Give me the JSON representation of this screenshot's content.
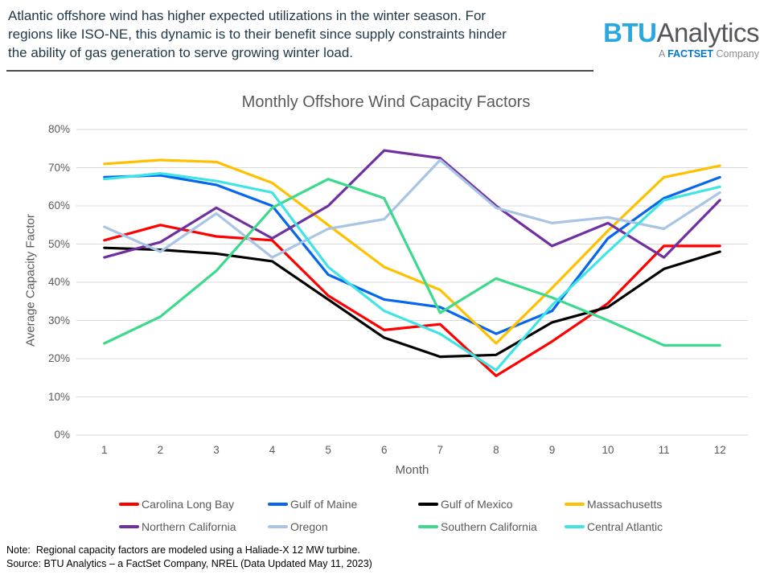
{
  "header": {
    "lines": [
      "Atlantic offshore wind has higher expected utilizations in the winter season. For",
      "regions like ISO-NE, this dynamic is to their benefit since supply constraints hinder",
      "the ability of gas generation to serve growing winter load."
    ],
    "logo": {
      "brand_bold": "BTU",
      "brand_rest": "Analytics",
      "tagline_prefix": "A ",
      "tagline_brand": "FACTSET",
      "tagline_suffix": " Company",
      "brand_color": "#29A8E0",
      "factset_color": "#0076C6"
    }
  },
  "chart_data": {
    "type": "line",
    "title": "Monthly Offshore Wind Capacity Factors",
    "xlabel": "Month",
    "ylabel": "Average Capacity Factor",
    "x": [
      1,
      2,
      3,
      4,
      5,
      6,
      7,
      8,
      9,
      10,
      11,
      12
    ],
    "ylim": [
      0,
      80
    ],
    "y_tick_step": 10,
    "y_tick_suffix": "%",
    "grid": "horizontal-only",
    "grid_color": "#D9D9D9",
    "legend_position": "bottom",
    "series": [
      {
        "name": "Carolina Long Bay",
        "color": "#FF0000",
        "values": [
          51,
          55,
          52,
          51,
          36.5,
          27.5,
          29,
          15.5,
          24.5,
          34.5,
          49.5,
          49.5
        ]
      },
      {
        "name": "Gulf of Maine",
        "color": "#0667EC",
        "values": [
          67.5,
          68,
          65.5,
          60,
          42,
          35.5,
          33.5,
          26.5,
          32.5,
          51.5,
          62,
          67.5
        ]
      },
      {
        "name": "Gulf of Mexico",
        "color": "#000000",
        "values": [
          49,
          48.5,
          47.5,
          45.5,
          35.5,
          25.5,
          20.5,
          21,
          29.5,
          33.5,
          43.5,
          48
        ]
      },
      {
        "name": "Massachusetts",
        "color": "#FFC000",
        "values": [
          71,
          72,
          71.5,
          66,
          55,
          44,
          38,
          24,
          38.5,
          53.5,
          67.5,
          70.5
        ]
      },
      {
        "name": "Northern California",
        "color": "#7030A0",
        "values": [
          46.5,
          50.5,
          59.5,
          51.5,
          60,
          74.5,
          72.5,
          60,
          49.5,
          55.5,
          46.5,
          61.5
        ]
      },
      {
        "name": "Oregon",
        "color": "#A9C4E4",
        "values": [
          54.5,
          48,
          58,
          46.5,
          54,
          56.5,
          72,
          59.5,
          55.5,
          57,
          54,
          63.5
        ]
      },
      {
        "name": "Southern California",
        "color": "#3DD98C",
        "values": [
          24,
          31,
          43,
          59.5,
          67,
          62,
          32,
          41,
          36,
          30,
          23.5,
          23.5
        ]
      },
      {
        "name": "Central Atlantic",
        "color": "#40E4E4",
        "values": [
          67,
          68.5,
          66.5,
          63.5,
          44,
          32.5,
          26.5,
          17,
          34,
          48,
          61.5,
          65
        ]
      }
    ]
  },
  "notes": {
    "note_line": "Note:  Regional capacity factors are modeled using a Haliade-X 12 MW turbine.",
    "source_line": "Source: BTU Analytics – a FactSet Company, NREL (Data Updated May 11, 2023)"
  }
}
